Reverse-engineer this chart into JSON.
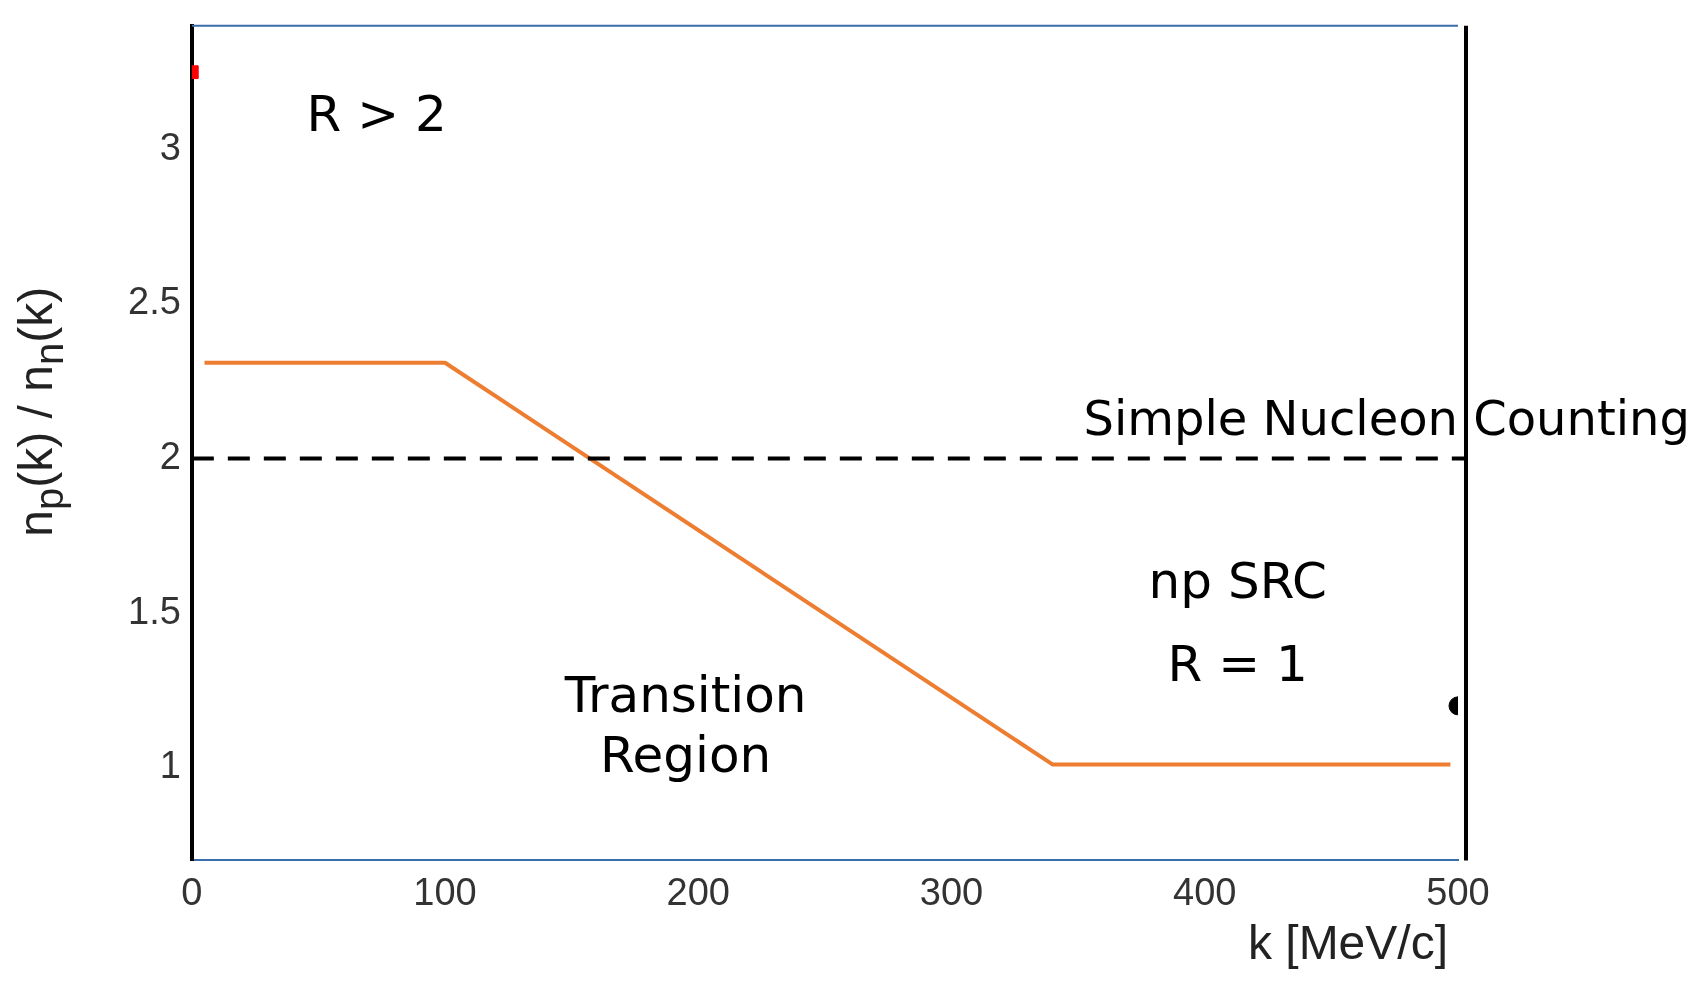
{
  "chart_data": {
    "type": "line",
    "xlabel": "k [MeV/c]",
    "ylabel": "n$_{p}$(k) / n$_{n}$(k)",
    "xlim": [
      0,
      500
    ],
    "xticks": [
      0,
      100,
      200,
      300,
      400,
      500
    ],
    "ylim": [
      0.7,
      3.4
    ],
    "yticks": [
      1,
      1.5,
      2,
      2.5,
      3
    ],
    "grid": false,
    "legend": false,
    "series": [
      {
        "type": "line",
        "color": "#ed7d31",
        "x": [
          5,
          100,
          340,
          497
        ],
        "values": [
          2.31,
          2.31,
          1.01,
          1.01
        ],
        "marker": "none"
      },
      {
        "type": "scatter",
        "color": "#ff0000",
        "x": [
          0
        ],
        "values": [
          3.25
        ],
        "marker": "square"
      },
      {
        "type": "scatter",
        "color": "#000000",
        "x": [
          500
        ],
        "values": [
          1.2
        ],
        "marker": "circle"
      }
    ],
    "ref_lines": [
      {
        "axis": "y",
        "value": 2,
        "label": "Simple Nucleon Counting",
        "color": "#000000",
        "line_style": "dashed"
      }
    ],
    "annotations": [
      "R > 2",
      "Transition Region",
      "np SRC",
      "R = 1"
    ]
  }
}
